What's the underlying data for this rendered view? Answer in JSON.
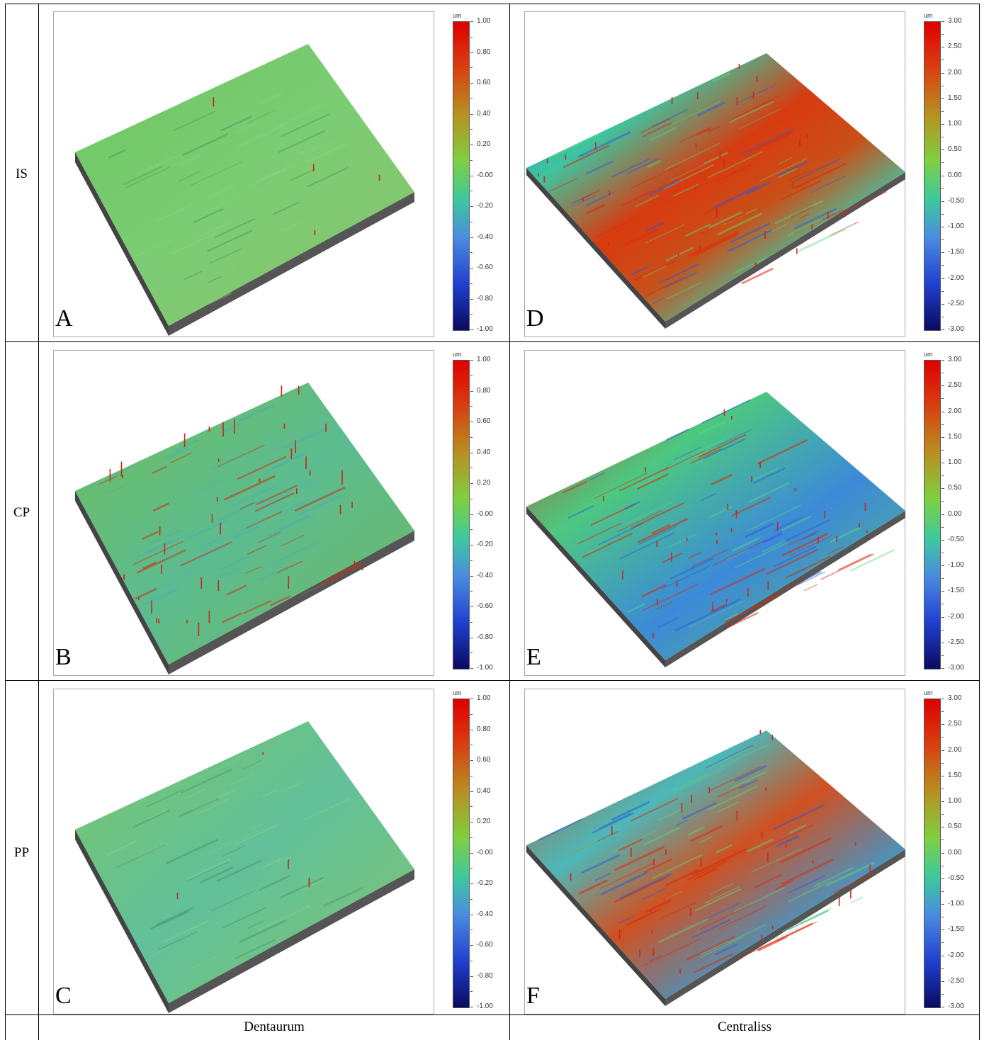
{
  "rows": [
    "IS",
    "CP",
    "PP"
  ],
  "columns": [
    "Dentaurum",
    "Centraliss"
  ],
  "panels": [
    {
      "letter": "A",
      "scale": [
        "1.00",
        "0.80",
        "0.60",
        "0.40",
        "0.20",
        "-0.00",
        "-0.20",
        "-0.40",
        "-0.60",
        "-0.80",
        "-1.00"
      ],
      "unit": "um"
    },
    {
      "letter": "D",
      "scale": [
        "3.00",
        "2.50",
        "2.00",
        "1.50",
        "1.00",
        "0.50",
        "0.00",
        "-0.50",
        "-1.00",
        "-1.50",
        "-2.00",
        "-2.50",
        "-3.00"
      ],
      "unit": "um"
    },
    {
      "letter": "B",
      "scale": [
        "1.00",
        "0.80",
        "0.60",
        "0.40",
        "0.20",
        "-0.00",
        "-0.20",
        "-0.40",
        "-0.60",
        "-0.80",
        "-1.00"
      ],
      "unit": "um"
    },
    {
      "letter": "E",
      "scale": [
        "3.00",
        "2.50",
        "2.00",
        "1.50",
        "1.00",
        "0.50",
        "0.00",
        "-0.50",
        "-1.00",
        "-1.50",
        "-2.00",
        "-2.50",
        "-3.00"
      ],
      "unit": "um"
    },
    {
      "letter": "C",
      "scale": [
        "1.00",
        "0.80",
        "0.60",
        "0.40",
        "0.20",
        "-0.00",
        "-0.20",
        "-0.40",
        "-0.60",
        "-0.80",
        "-1.00"
      ],
      "unit": "um"
    },
    {
      "letter": "F",
      "scale": [
        "3.00",
        "2.50",
        "2.00",
        "1.50",
        "1.00",
        "0.50",
        "0.00",
        "-0.50",
        "-1.00",
        "-1.50",
        "-2.00",
        "-2.50",
        "-3.00"
      ],
      "unit": "um"
    }
  ],
  "colors": {
    "high": "#e01010",
    "mid": "#50d850",
    "low": "#101070",
    "block_side": "#444444"
  }
}
